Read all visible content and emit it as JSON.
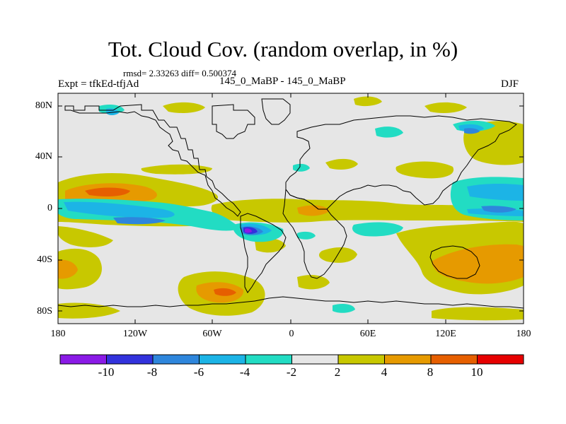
{
  "figure": {
    "title": "Tot. Cloud Cov. (random overlap, in %)",
    "stats_line": "rmsd= 2.33263 diff= 0.500374",
    "left_label": "Expt = tfkEd-tfjAd",
    "center_label": "145_0_MaBP - 145_0_MaBP",
    "right_label": "DJF"
  },
  "map": {
    "projection": "cylindrical equidistant",
    "lon_range": [
      -180,
      180
    ],
    "lat_range": [
      -90,
      90
    ],
    "lat_ticks": [
      "80N",
      "40N",
      "0",
      "40S",
      "80S"
    ],
    "lon_ticks": [
      "180",
      "120W",
      "60W",
      "0",
      "60E",
      "120E",
      "180"
    ],
    "ocean_background": "#e6e6e6"
  },
  "colorbar": {
    "labels": [
      "-10",
      "-8",
      "-6",
      "-4",
      "-2",
      "2",
      "4",
      "8",
      "10"
    ],
    "colors": [
      "#8a1ae6",
      "#3232dc",
      "#2e86dc",
      "#1cb4e6",
      "#22dcc3",
      "#e6e6e6",
      "#c8c800",
      "#e69a00",
      "#e65f00",
      "#e60000"
    ]
  }
}
